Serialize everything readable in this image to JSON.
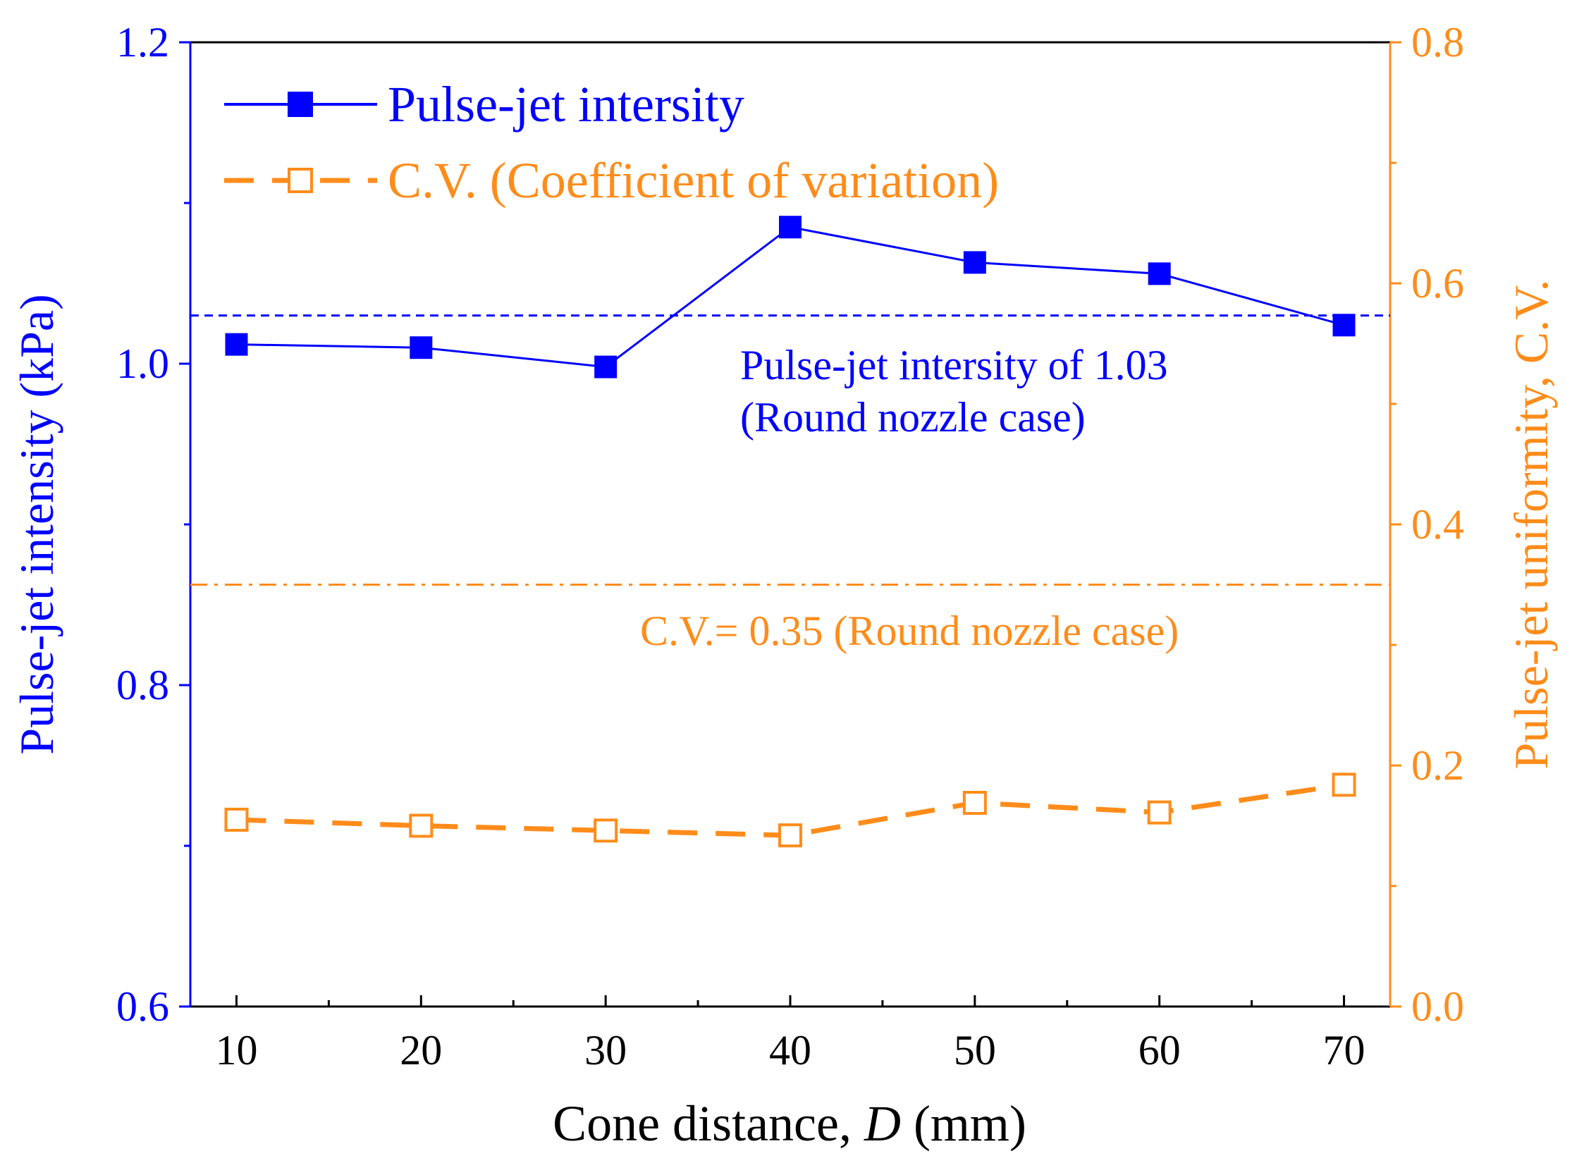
{
  "chart_data": {
    "type": "line",
    "xlabel_prefix": "Cone distance, ",
    "xlabel_var": "D",
    "xlabel_suffix": " (mm)",
    "ylabel_left": "Pulse-jet intensity (kPa)",
    "ylabel_right": "Pulse-jet uniformity, C.V.",
    "xlim": [
      7.5,
      72.5
    ],
    "ylim_left": [
      0.6,
      1.2
    ],
    "ylim_right": [
      0.0,
      0.8
    ],
    "x_ticks": [
      10,
      20,
      30,
      40,
      50,
      60,
      70
    ],
    "x_tick_labels": [
      "10",
      "20",
      "30",
      "40",
      "50",
      "60",
      "70"
    ],
    "y_left_ticks": [
      0.6,
      0.8,
      1.0,
      1.2
    ],
    "y_left_tick_labels": [
      "0.6",
      "0.8",
      "1.0",
      "1.2"
    ],
    "y_right_ticks": [
      0.0,
      0.2,
      0.4,
      0.6,
      0.8
    ],
    "y_right_tick_labels": [
      "0.0",
      "0.2",
      "0.4",
      "0.6",
      "0.8"
    ],
    "series": [
      {
        "name": "Pulse-jet intersity",
        "axis": "left",
        "x": [
          10,
          20,
          30,
          40,
          50,
          60,
          70
        ],
        "values": [
          1.012,
          1.01,
          0.998,
          1.085,
          1.063,
          1.056,
          1.024
        ]
      },
      {
        "name": "C.V. (Coefficient of variation)",
        "axis": "right",
        "x": [
          10,
          20,
          30,
          40,
          50,
          60,
          70
        ],
        "values": [
          0.155,
          0.15,
          0.146,
          0.142,
          0.169,
          0.161,
          0.184
        ]
      }
    ],
    "reference_lines": [
      {
        "axis": "left",
        "value": 1.03,
        "label_line1": "Pulse-jet intersity of 1.03",
        "label_line2": "(Round nozzle case)"
      },
      {
        "axis": "right",
        "value": 0.35,
        "label_line1": "C.V.= 0.35 (Round nozzle case)"
      }
    ],
    "legend_position": "top-left",
    "grid": false
  },
  "colors": {
    "intensity": "#0000ff",
    "cv": "#ff8c1a",
    "axis": "#000000"
  }
}
